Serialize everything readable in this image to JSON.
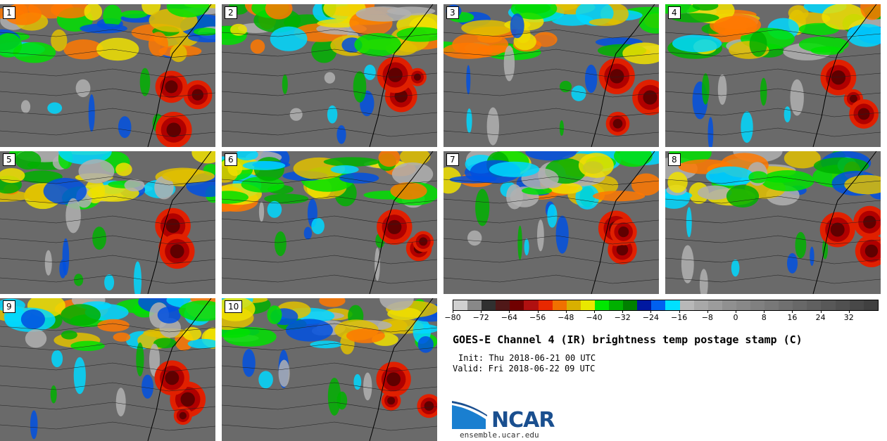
{
  "stamps": [
    {
      "label": "1"
    },
    {
      "label": "2"
    },
    {
      "label": "3"
    },
    {
      "label": "4"
    },
    {
      "label": "5"
    },
    {
      "label": "6"
    },
    {
      "label": "7"
    },
    {
      "label": "8"
    },
    {
      "label": "9"
    },
    {
      "label": "10"
    }
  ],
  "colorbar": {
    "colors": [
      "#d0d0d0",
      "#888888",
      "#303030",
      "#501818",
      "#700000",
      "#b01010",
      "#e82800",
      "#f07000",
      "#d8b000",
      "#e8e800",
      "#00e800",
      "#00b000",
      "#008000",
      "#0018a0",
      "#0060f0",
      "#00e0ff",
      "#b8b8b8",
      "#a8a8a8",
      "#9c9c9c",
      "#909090",
      "#888888",
      "#808080",
      "#787878",
      "#707070",
      "#686868",
      "#606060",
      "#585858",
      "#505050",
      "#484848",
      "#404040"
    ],
    "tick_labels": [
      "−80",
      "−72",
      "−64",
      "−56",
      "−48",
      "−40",
      "−32",
      "−24",
      "−16",
      "−8",
      "0",
      "8",
      "16",
      "24",
      "32"
    ]
  },
  "title": "GOES-E Channel 4 (IR) brightness temp postage stamp (C)",
  "init": "Init: Thu 2018-06-21 00 UTC",
  "valid": "Valid: Fri 2018-06-22 09 UTC",
  "logo": {
    "text": "NCAR",
    "url": "ensemble.ucar.edu",
    "accent": "#1a4f8f"
  }
}
